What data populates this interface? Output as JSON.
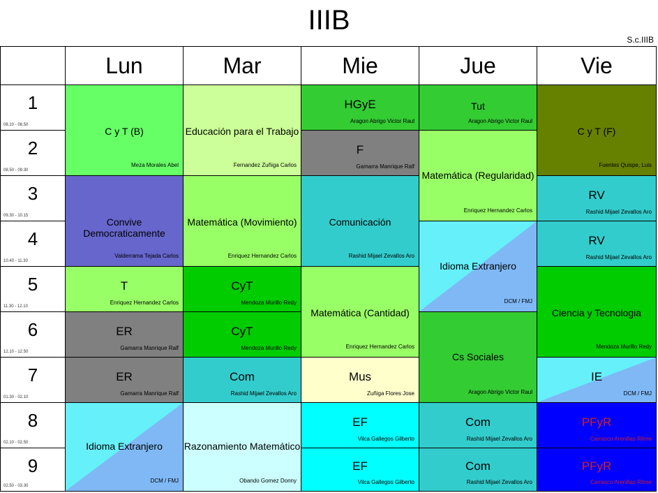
{
  "title": "IIIB",
  "code": "S.c.IIIB",
  "days": [
    "Lun",
    "Mar",
    "Mie",
    "Jue",
    "Vie"
  ],
  "periods": [
    {
      "n": "1",
      "time": "08.10 - 08.50"
    },
    {
      "n": "2",
      "time": "08.50 - 09.30"
    },
    {
      "n": "3",
      "time": "09.30 - 10.15"
    },
    {
      "n": "4",
      "time": "10.40 - 11.30"
    },
    {
      "n": "5",
      "time": "11.30 - 12.10"
    },
    {
      "n": "6",
      "time": "12.10 - 12.50"
    },
    {
      "n": "7",
      "time": "01.30 - 02.10"
    },
    {
      "n": "8",
      "time": "02.10 - 02.50"
    },
    {
      "n": "9",
      "time": "02.50 - 03.30"
    }
  ],
  "cells": {
    "lun_1": {
      "subject": "C y T (B)",
      "teacher": "Meza Morales Abel",
      "color": "#66ff66"
    },
    "lun_3": {
      "subject": "Convive Democraticamente",
      "teacher": "Valderrama Tejada Carlos",
      "color": "#6666cc"
    },
    "lun_5": {
      "subject": "T",
      "teacher": "Enriquez Hernandez Carlos",
      "color": "#99ff66"
    },
    "lun_6": {
      "subject": "ER",
      "teacher": "Gamarra Manrique  Ralf",
      "color": "#808080"
    },
    "lun_7": {
      "subject": "ER",
      "teacher": "Gamarra Manrique  Ralf",
      "color": "#808080"
    },
    "lun_8": {
      "subject": "Idioma Extranjero",
      "teacher": "DCM / FMJ",
      "color": "#66f0fa"
    },
    "mar_1": {
      "subject": "Educación para el Trabajo",
      "teacher": "Fernandez Zuñiga Carlos",
      "color": "#ccff99"
    },
    "mar_3": {
      "subject": "Matemática (Movimiento)",
      "teacher": "Enriquez Hernandez Carlos",
      "color": "#99ff66"
    },
    "mar_5": {
      "subject": "CyT",
      "teacher": "Mendoza Murillo Redy",
      "color": "#00cc00"
    },
    "mar_6": {
      "subject": "CyT",
      "teacher": "Mendoza Murillo Redy",
      "color": "#00cc00"
    },
    "mar_7": {
      "subject": "Com",
      "teacher": "Rashid Mijael Zevallos Aro",
      "color": "#33cccc"
    },
    "mar_8": {
      "subject": "Razonamiento Matemático",
      "teacher": "Obando  Gomez Donny",
      "color": "#ccffff"
    },
    "mie_1": {
      "subject": "HGyE",
      "teacher": "Aragon Abrigo Victor Raul",
      "color": "#33cc33"
    },
    "mie_2": {
      "subject": "F",
      "teacher": "Gamarra Manrique  Ralf",
      "color": "#808080"
    },
    "mie_3": {
      "subject": "Comunicación",
      "teacher": "Rashid Mijael Zevallos Aro",
      "color": "#33cccc"
    },
    "mie_5": {
      "subject": "Matemática (Cantidad)",
      "teacher": "Enriquez Hernandez Carlos",
      "color": "#99ff66"
    },
    "mie_7": {
      "subject": "Mus",
      "teacher": "Zuñiga Flores Jose",
      "color": "#ffffcc"
    },
    "mie_8": {
      "subject": "EF",
      "teacher": "Vilca Gallegos Gilberto",
      "color": "#00ffff"
    },
    "mie_9": {
      "subject": "EF",
      "teacher": "Vilca Gallegos Gilberto",
      "color": "#00ffff"
    },
    "jue_1": {
      "subject": "Tut",
      "teacher": "Aragon Abrigo Victor Raul",
      "color": "#33cc33"
    },
    "jue_2": {
      "subject": "Matemática (Regularidad)",
      "teacher": "Enriquez Hernandez Carlos",
      "color": "#99ff66"
    },
    "jue_4": {
      "subject": "Idioma Extranjero",
      "teacher": "DCM / FMJ",
      "color": "#66f0fa"
    },
    "jue_6": {
      "subject": "Cs Sociales",
      "teacher": "Aragon Abrigo Victor Raul",
      "color": "#33cc33"
    },
    "jue_8": {
      "subject": "Com",
      "teacher": "Rashid Mijael Zevallos Aro",
      "color": "#33cccc"
    },
    "jue_9": {
      "subject": "Com",
      "teacher": "Rashid Mijael Zevallos Aro",
      "color": "#33cccc"
    },
    "vie_1": {
      "subject": "C y T (F)",
      "teacher": "Fuentes Quispe, Luis",
      "color": "#668000"
    },
    "vie_3": {
      "subject": "RV",
      "teacher": "Rashid Mijael Zevallos Aro",
      "color": "#33cccc"
    },
    "vie_4": {
      "subject": "RV",
      "teacher": "Rashid Mijael Zevallos Aro",
      "color": "#33cccc"
    },
    "vie_5": {
      "subject": "Ciencia y Tecnologia",
      "teacher": "Mendoza Murillo Redy",
      "color": "#00cc00"
    },
    "vie_7": {
      "subject": "IE",
      "teacher": "DCM / FMJ",
      "color": "#66f0fa"
    },
    "vie_8": {
      "subject": "PFyR",
      "teacher": "Carrasco Arenillas Ritme",
      "color": "#0000ff"
    },
    "vie_9": {
      "subject": "PFyR",
      "teacher": "Carrasco Arenillas Ritme",
      "color": "#0000ff"
    }
  }
}
